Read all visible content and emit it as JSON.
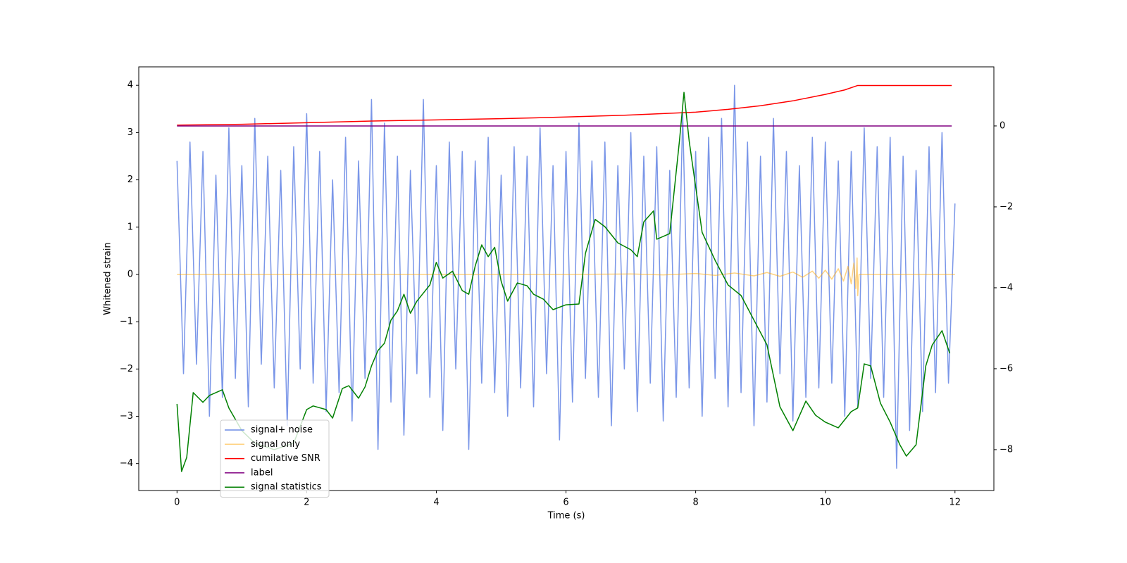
{
  "chart_data": {
    "type": "line",
    "xlabel": "Time (s)",
    "ylabel": "Whitened strain",
    "xlim": [
      -0.59,
      12.6
    ],
    "ylim": [
      -4.57,
      4.39
    ],
    "y2lim": [
      -9.01,
      1.46
    ],
    "xticks": [
      0,
      2,
      4,
      6,
      8,
      10,
      12
    ],
    "yticks": [
      {
        "value": -4,
        "label": "−4"
      },
      {
        "value": -3,
        "label": "−3"
      },
      {
        "value": -2,
        "label": "−2"
      },
      {
        "value": -1,
        "label": "−1"
      },
      0,
      1,
      2,
      3,
      4
    ],
    "y2ticks": [
      {
        "value": -8,
        "label": "−8"
      },
      {
        "value": -6,
        "label": "−6"
      },
      {
        "value": -4,
        "label": "−4"
      },
      {
        "value": -2,
        "label": "−2"
      },
      0
    ],
    "legend": "lower left",
    "series": [
      {
        "name": "signal+ noise",
        "color": "#6b8be6",
        "x": [
          0,
          0.1,
          0.2,
          0.3,
          0.4,
          0.5,
          0.6,
          0.7,
          0.8,
          0.9,
          1,
          1.1,
          1.2,
          1.3,
          1.4,
          1.5,
          1.6,
          1.7,
          1.8,
          1.9,
          2,
          2.1,
          2.2,
          2.3,
          2.4,
          2.5,
          2.6,
          2.7,
          2.8,
          2.9,
          3,
          3.1,
          3.2,
          3.3,
          3.4,
          3.5,
          3.6,
          3.7,
          3.8,
          3.9,
          4,
          4.1,
          4.2,
          4.3,
          4.4,
          4.5,
          4.6,
          4.7,
          4.8,
          4.9,
          5,
          5.1,
          5.2,
          5.3,
          5.4,
          5.5,
          5.6,
          5.7,
          5.8,
          5.9,
          6,
          6.1,
          6.2,
          6.3,
          6.4,
          6.5,
          6.6,
          6.7,
          6.8,
          6.9,
          7,
          7.1,
          7.2,
          7.3,
          7.4,
          7.5,
          7.6,
          7.7,
          7.8,
          7.9,
          8,
          8.1,
          8.2,
          8.3,
          8.4,
          8.5,
          8.6,
          8.7,
          8.8,
          8.9,
          9,
          9.1,
          9.2,
          9.3,
          9.4,
          9.5,
          9.6,
          9.7,
          9.8,
          9.9,
          10,
          10.1,
          10.2,
          10.3,
          10.4,
          10.5,
          10.6,
          10.7,
          10.8,
          10.9,
          11,
          11.1,
          11.2,
          11.3,
          11.4,
          11.5,
          11.6,
          11.7,
          11.8,
          11.9,
          12
        ],
        "values": [
          2.4,
          -2.1,
          2.8,
          -1.9,
          2.6,
          -3.0,
          2.1,
          -2.6,
          3.1,
          -2.2,
          2.3,
          -2.8,
          3.3,
          -1.9,
          2.5,
          -2.4,
          2.2,
          -3.2,
          2.7,
          -2.0,
          3.4,
          -2.3,
          2.6,
          -2.9,
          2.0,
          -2.5,
          2.9,
          -3.1,
          2.4,
          -2.2,
          3.7,
          -3.7,
          3.2,
          -2.7,
          2.5,
          -3.4,
          2.2,
          -2.1,
          3.7,
          -2.6,
          2.3,
          -3.3,
          2.8,
          -2.0,
          2.6,
          -3.7,
          2.4,
          -2.3,
          2.9,
          -2.5,
          2.1,
          -3.0,
          2.7,
          -2.4,
          2.5,
          -2.8,
          3.1,
          -2.1,
          2.3,
          -3.5,
          2.6,
          -2.7,
          3.2,
          -2.2,
          2.4,
          -2.6,
          2.8,
          -3.2,
          2.3,
          -2.0,
          3.0,
          -2.9,
          2.5,
          -2.3,
          2.7,
          -3.1,
          2.2,
          -2.6,
          3.4,
          -2.4,
          2.6,
          -3.0,
          2.9,
          -2.2,
          3.3,
          -2.8,
          4.0,
          -2.5,
          2.8,
          -3.2,
          2.5,
          -2.7,
          3.3,
          -2.1,
          2.6,
          -3.1,
          2.3,
          -2.6,
          2.9,
          -2.4,
          2.8,
          -2.3,
          2.4,
          -3.0,
          2.6,
          -2.8,
          3.1,
          -2.2,
          2.7,
          -2.6,
          2.9,
          -4.1,
          2.5,
          -3.3,
          2.2,
          -2.9,
          2.7,
          -2.5,
          3.0,
          -2.3,
          1.5
        ]
      },
      {
        "name": "signal only",
        "color": "#ffa500",
        "x": [
          0,
          1,
          2,
          3,
          4,
          5,
          6,
          7,
          7.5,
          8,
          8.3,
          8.6,
          8.9,
          9.1,
          9.3,
          9.5,
          9.65,
          9.8,
          9.9,
          10.0,
          10.1,
          10.2,
          10.28,
          10.35,
          10.4,
          10.44,
          10.47,
          10.49,
          10.5,
          10.52,
          11,
          12
        ],
        "values": [
          0,
          0,
          0,
          0,
          0,
          0,
          0,
          0.01,
          -0.01,
          0.02,
          -0.02,
          0.03,
          -0.03,
          0.04,
          -0.04,
          0.05,
          -0.06,
          0.07,
          -0.08,
          0.09,
          -0.1,
          0.12,
          -0.14,
          0.17,
          -0.2,
          0.24,
          -0.3,
          0.35,
          -0.45,
          0,
          0,
          0
        ]
      },
      {
        "name": "cumilative SNR",
        "color": "#ff0000",
        "axis": "y2",
        "x": [
          0,
          1,
          2,
          3,
          4,
          5,
          6,
          7,
          8,
          8.5,
          9,
          9.5,
          10,
          10.3,
          10.5,
          11.95
        ],
        "values": [
          0.02,
          0.04,
          0.08,
          0.12,
          0.15,
          0.18,
          0.22,
          0.27,
          0.34,
          0.41,
          0.5,
          0.62,
          0.78,
          0.89,
          1.0,
          1.0
        ]
      },
      {
        "name": "label",
        "color": "#800080",
        "axis": "y2",
        "x": [
          0,
          11.95
        ],
        "values": [
          0,
          0
        ]
      },
      {
        "name": "signal statistics",
        "color": "#008000",
        "axis": "y2",
        "x": [
          0,
          0.07,
          0.15,
          0.25,
          0.4,
          0.5,
          0.7,
          0.8,
          1.0,
          1.2,
          1.5,
          1.8,
          2.0,
          2.1,
          2.3,
          2.4,
          2.55,
          2.65,
          2.8,
          2.9,
          3.0,
          3.1,
          3.2,
          3.3,
          3.4,
          3.5,
          3.6,
          3.7,
          3.9,
          4.0,
          4.1,
          4.25,
          4.4,
          4.5,
          4.6,
          4.7,
          4.8,
          4.9,
          5.0,
          5.1,
          5.25,
          5.4,
          5.5,
          5.65,
          5.8,
          6.0,
          6.2,
          6.3,
          6.45,
          6.6,
          6.8,
          7.0,
          7.1,
          7.2,
          7.35,
          7.4,
          7.6,
          7.75,
          7.82,
          7.9,
          8.1,
          8.3,
          8.5,
          8.7,
          8.9,
          9.1,
          9.3,
          9.5,
          9.7,
          9.85,
          10.0,
          10.2,
          10.4,
          10.5,
          10.6,
          10.7,
          10.85,
          11.0,
          11.15,
          11.25,
          11.4,
          11.55,
          11.65,
          11.8,
          11.92
        ],
        "values": [
          -6.87,
          -8.54,
          -8.19,
          -6.59,
          -6.83,
          -6.66,
          -6.52,
          -6.97,
          -7.53,
          -7.84,
          -8.0,
          -7.84,
          -7.01,
          -6.92,
          -7.01,
          -7.22,
          -6.49,
          -6.42,
          -6.73,
          -6.45,
          -5.93,
          -5.55,
          -5.37,
          -4.8,
          -4.57,
          -4.16,
          -4.63,
          -4.33,
          -3.93,
          -3.37,
          -3.76,
          -3.59,
          -4.07,
          -4.16,
          -3.46,
          -2.94,
          -3.23,
          -3.0,
          -3.84,
          -4.33,
          -3.88,
          -3.95,
          -4.16,
          -4.28,
          -4.54,
          -4.42,
          -4.4,
          -3.15,
          -2.31,
          -2.49,
          -2.89,
          -3.06,
          -3.23,
          -2.37,
          -2.1,
          -2.8,
          -2.66,
          -0.37,
          0.83,
          -0.37,
          -2.63,
          -3.32,
          -3.93,
          -4.19,
          -4.8,
          -5.41,
          -6.94,
          -7.53,
          -6.8,
          -7.15,
          -7.32,
          -7.46,
          -7.06,
          -6.97,
          -5.88,
          -5.93,
          -6.85,
          -7.32,
          -7.88,
          -8.16,
          -7.88,
          -5.93,
          -5.41,
          -5.06,
          -5.62
        ]
      }
    ]
  }
}
